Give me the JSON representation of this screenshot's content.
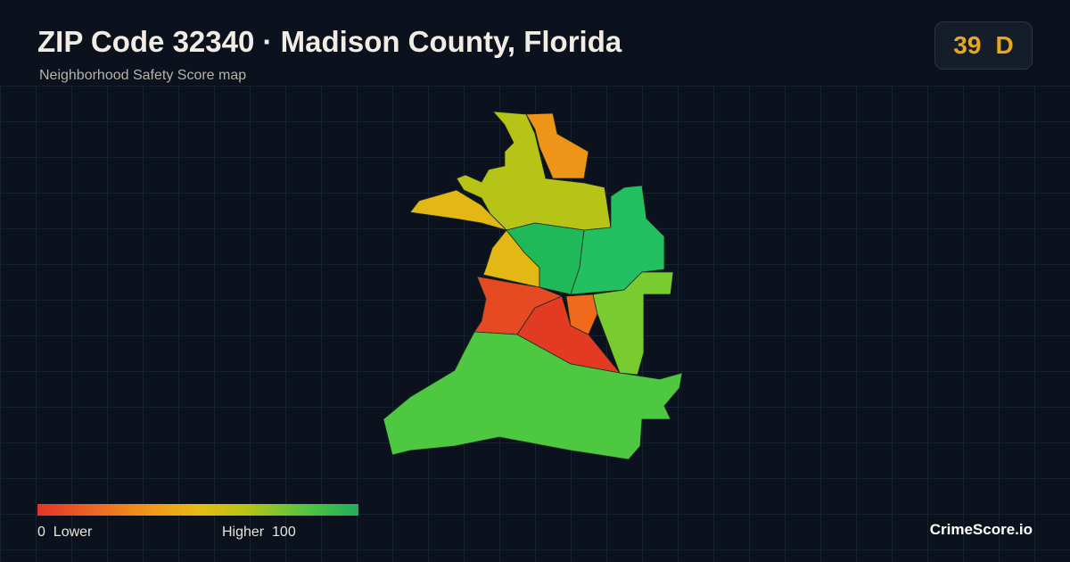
{
  "header": {
    "title": "ZIP Code 32340 · Madison County, Florida",
    "subtitle": "Neighborhood Safety Score map"
  },
  "score": {
    "value": 39,
    "grade": "D"
  },
  "legend": {
    "min": 0,
    "min_label": "Lower",
    "max_label": "Higher",
    "max": 100
  },
  "brand": "CrimeScore.io"
}
